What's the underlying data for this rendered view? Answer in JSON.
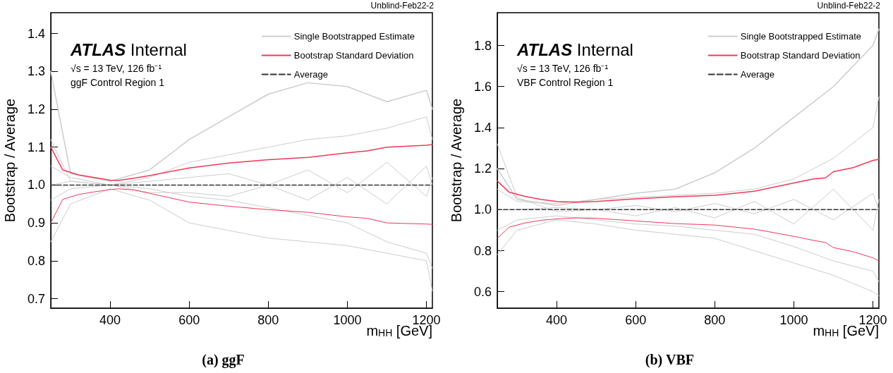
{
  "chart_data": [
    {
      "type": "line",
      "title": "(a) ggF",
      "xlabel": "m$_{HH}$ [GeV]",
      "ylabel": "Bootstrap / Average",
      "annotations": [
        "Unblind-Feb22-2",
        "ATLAS Internal",
        "√s = 13 TeV, 126 fb⁻¹",
        "ggF Control Region 1"
      ],
      "xlim": [
        250,
        1215
      ],
      "xticks": [
        400,
        600,
        800,
        1000,
        1200
      ],
      "ylim": [
        0.675,
        1.455
      ],
      "yticks": [
        0.7,
        0.8,
        0.9,
        {
          "value": 1,
          "label": "1.0"
        },
        1.1,
        1.2,
        1.3,
        1.4
      ],
      "legend": "top right",
      "grid": false,
      "series": [
        {
          "name": "Single Bootstrapped Estimate",
          "color": "#cccccc",
          "x": [
            250,
            300,
            400,
            500,
            600,
            700,
            800,
            900,
            1000,
            1100,
            1200,
            1215
          ],
          "values": [
            1.3,
            1.03,
            1.01,
            1.04,
            1.12,
            1.18,
            1.24,
            1.27,
            1.26,
            1.22,
            1.25,
            1.2
          ]
        },
        {
          "color": "#cccccc",
          "x": [
            250,
            300,
            400,
            500,
            600,
            700,
            800,
            900,
            1000,
            1100,
            1200,
            1215
          ],
          "values": [
            1.05,
            1.02,
            1.0,
            1.02,
            1.06,
            1.08,
            1.1,
            1.12,
            1.13,
            1.15,
            1.18,
            1.12
          ]
        },
        {
          "color": "#cccccc",
          "x": [
            250,
            300,
            400,
            500,
            600,
            700,
            800,
            900,
            1000,
            1100,
            1200,
            1215
          ],
          "values": [
            0.96,
            0.99,
            1.0,
            0.99,
            0.97,
            0.96,
            0.94,
            0.92,
            0.9,
            0.85,
            0.82,
            0.78
          ]
        },
        {
          "color": "#cccccc",
          "x": [
            250,
            300,
            400,
            500,
            600,
            700,
            800,
            900,
            1000,
            1100,
            1200,
            1215
          ],
          "values": [
            0.85,
            0.95,
            0.99,
            0.96,
            0.9,
            0.88,
            0.86,
            0.85,
            0.84,
            0.82,
            0.8,
            0.72
          ]
        },
        {
          "color": "#cccccc",
          "x": [
            250,
            300,
            400,
            500,
            600,
            700,
            800,
            900,
            1000,
            1100,
            1200,
            1215
          ],
          "values": [
            1.0,
            1.01,
            1.0,
            1.01,
            1.02,
            1.03,
            1.0,
            1.04,
            0.98,
            1.06,
            0.97,
            1.02
          ]
        },
        {
          "color": "#cccccc",
          "x": [
            250,
            300,
            400,
            500,
            600,
            700,
            800,
            900,
            1000,
            1100,
            1200,
            1215
          ],
          "values": [
            1.12,
            1.01,
            1.0,
            0.98,
            0.98,
            0.97,
            1.0,
            0.96,
            1.02,
            0.95,
            1.05,
            1.0
          ]
        },
        {
          "name": "Bootstrap Standard Deviation",
          "color": "#f0385a",
          "x": [
            250,
            280,
            320,
            360,
            400,
            420,
            460,
            500,
            600,
            700,
            800,
            900,
            1000,
            1050,
            1100,
            1200,
            1215
          ],
          "values": [
            1.1,
            1.04,
            1.027,
            1.02,
            1.013,
            1.012,
            1.018,
            1.025,
            1.045,
            1.058,
            1.067,
            1.073,
            1.085,
            1.09,
            1.1,
            1.105,
            1.107
          ]
        },
        {
          "color": "#f0385a",
          "x": [
            250,
            280,
            320,
            360,
            400,
            420,
            460,
            500,
            600,
            700,
            800,
            900,
            1000,
            1050,
            1100,
            1200,
            1215
          ],
          "values": [
            0.9,
            0.962,
            0.975,
            0.982,
            0.988,
            0.99,
            0.987,
            0.978,
            0.955,
            0.944,
            0.935,
            0.928,
            0.916,
            0.912,
            0.9,
            0.897,
            0.896
          ]
        },
        {
          "name": "Average",
          "color": "#333333",
          "line_style": "dashed",
          "x": [
            250,
            1215
          ],
          "values": [
            1,
            1
          ]
        }
      ]
    },
    {
      "type": "line",
      "title": "(b) VBF",
      "xlabel": "m$_{HH}$ [GeV]",
      "ylabel": "Bootstrap / Average",
      "annotations": [
        "Unblind-Feb22-2",
        "ATLAS Internal",
        "√s = 13 TeV, 126 fb⁻¹",
        "VBF Control Region 1"
      ],
      "xlim": [
        250,
        1215
      ],
      "xticks": [
        400,
        600,
        800,
        1000,
        1200
      ],
      "ylim": [
        0.52,
        1.96
      ],
      "yticks": [
        0.6,
        0.8,
        {
          "value": 1,
          "label": "1.0"
        },
        1.2,
        1.4,
        1.6,
        1.8
      ],
      "legend": "top right",
      "grid": false,
      "series": [
        {
          "name": "Single Bootstrapped Estimate",
          "color": "#cccccc",
          "x": [
            250,
            300,
            400,
            500,
            600,
            700,
            800,
            900,
            1000,
            1100,
            1200,
            1215
          ],
          "values": [
            1.2,
            1.05,
            1.02,
            1.05,
            1.08,
            1.1,
            1.18,
            1.3,
            1.45,
            1.6,
            1.8,
            1.88
          ]
        },
        {
          "color": "#cccccc",
          "x": [
            250,
            300,
            400,
            500,
            600,
            700,
            800,
            900,
            1000,
            1100,
            1200,
            1215
          ],
          "values": [
            1.1,
            1.04,
            1.03,
            1.05,
            1.06,
            1.07,
            1.08,
            1.1,
            1.15,
            1.25,
            1.4,
            1.55
          ]
        },
        {
          "color": "#cccccc",
          "x": [
            250,
            300,
            400,
            500,
            600,
            700,
            800,
            900,
            1000,
            1100,
            1200,
            1215
          ],
          "values": [
            0.9,
            0.95,
            0.97,
            0.95,
            0.93,
            0.92,
            0.9,
            0.88,
            0.82,
            0.75,
            0.7,
            0.65
          ]
        },
        {
          "color": "#cccccc",
          "x": [
            250,
            300,
            400,
            500,
            600,
            700,
            800,
            900,
            1000,
            1100,
            1200,
            1215
          ],
          "values": [
            0.78,
            0.9,
            0.95,
            0.93,
            0.9,
            0.88,
            0.86,
            0.8,
            0.74,
            0.68,
            0.6,
            0.58
          ]
        },
        {
          "color": "#cccccc",
          "x": [
            250,
            300,
            400,
            500,
            600,
            700,
            800,
            900,
            1000,
            1100,
            1200,
            1215
          ],
          "values": [
            1.0,
            1.0,
            1.01,
            1.0,
            1.02,
            0.99,
            1.03,
            0.98,
            1.05,
            0.95,
            1.08,
            1.0
          ]
        },
        {
          "color": "#cccccc",
          "x": [
            250,
            300,
            400,
            500,
            600,
            700,
            800,
            900,
            1000,
            1100,
            1200,
            1215
          ],
          "values": [
            1.32,
            1.06,
            0.99,
            1.0,
            0.97,
            1.01,
            0.96,
            1.04,
            0.93,
            1.1,
            0.9,
            1.05
          ]
        },
        {
          "name": "Bootstrap Standard Deviation",
          "color": "#f0385a",
          "x": [
            250,
            280,
            320,
            360,
            400,
            450,
            500,
            600,
            700,
            800,
            900,
            1000,
            1050,
            1080,
            1100,
            1150,
            1200,
            1215
          ],
          "values": [
            1.14,
            1.085,
            1.065,
            1.05,
            1.04,
            1.036,
            1.04,
            1.053,
            1.063,
            1.07,
            1.09,
            1.13,
            1.15,
            1.155,
            1.185,
            1.205,
            1.24,
            1.245
          ]
        },
        {
          "color": "#f0385a",
          "x": [
            250,
            280,
            320,
            360,
            400,
            450,
            500,
            600,
            700,
            800,
            900,
            1000,
            1050,
            1080,
            1100,
            1150,
            1200,
            1215
          ],
          "values": [
            0.86,
            0.915,
            0.935,
            0.948,
            0.955,
            0.96,
            0.958,
            0.945,
            0.932,
            0.925,
            0.905,
            0.87,
            0.85,
            0.84,
            0.815,
            0.795,
            0.765,
            0.75
          ]
        },
        {
          "name": "Average",
          "color": "#333333",
          "line_style": "dashed",
          "x": [
            250,
            1215
          ],
          "values": [
            1,
            1
          ]
        }
      ]
    }
  ]
}
